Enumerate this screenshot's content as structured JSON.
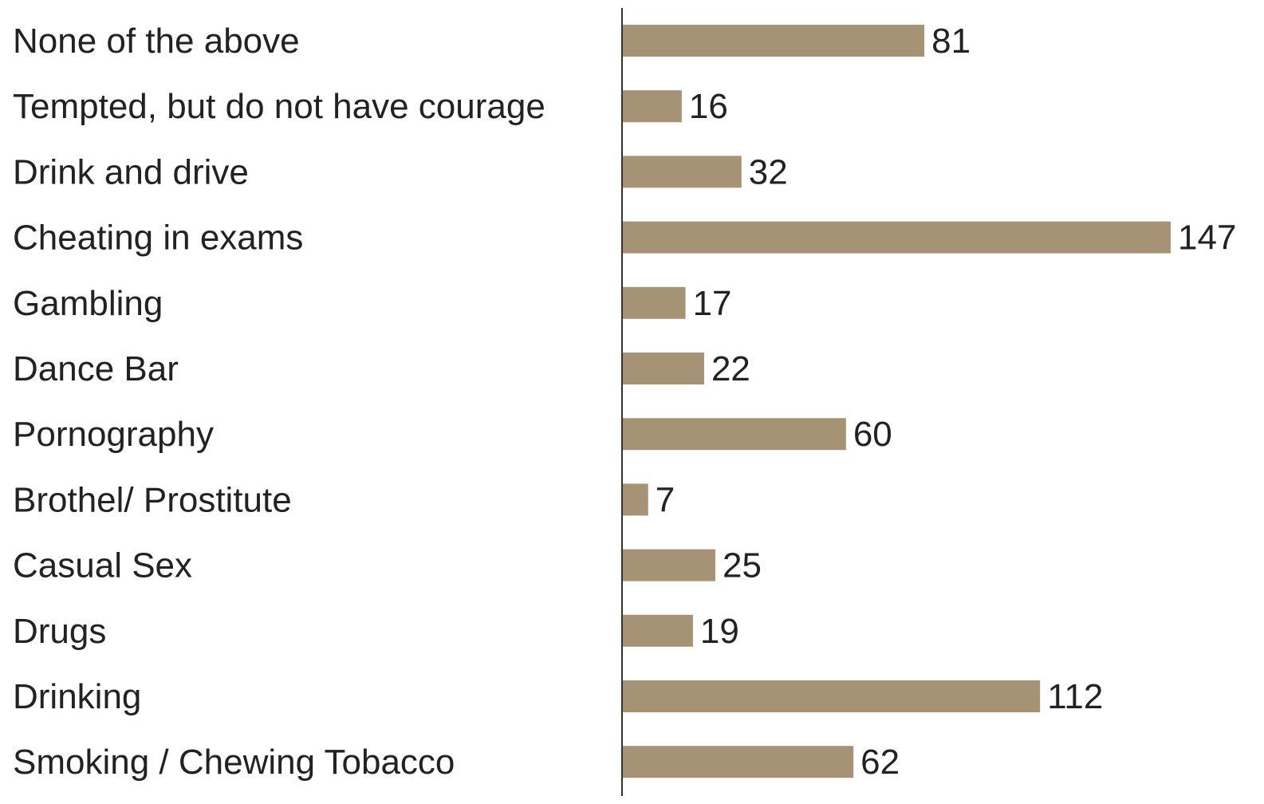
{
  "chart_data": {
    "type": "bar",
    "orientation": "horizontal",
    "title": "",
    "xlabel": "",
    "ylabel": "",
    "categories": [
      "None of the above",
      "Tempted, but do not have courage",
      "Drink and drive",
      "Cheating in exams",
      "Gambling",
      "Dance Bar",
      "Pornography",
      "Brothel/ Prostitute",
      "Casual Sex",
      "Drugs",
      "Drinking",
      "Smoking / Chewing Tobacco"
    ],
    "values": [
      81,
      16,
      32,
      147,
      17,
      22,
      60,
      7,
      25,
      19,
      112,
      62
    ],
    "xlim": [
      0,
      147
    ],
    "grid": false,
    "legend": "none",
    "bar_color": "#a69274",
    "axis_color": "#333333"
  }
}
